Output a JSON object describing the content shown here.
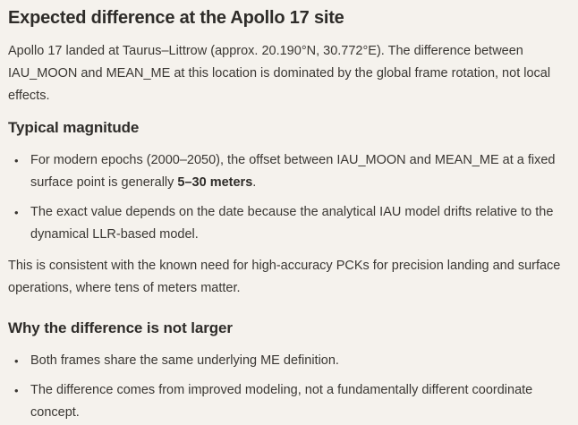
{
  "colors": {
    "background": "#f5f2ed",
    "body_text": "#3a3733",
    "heading_text": "#2e2c29"
  },
  "title": "Expected difference at the Apollo 17 site",
  "intro": "Apollo 17 landed at Taurus–Littrow (approx. 20.190°N, 30.772°E). The difference between IAU_MOON and MEAN_ME at this location is dominated by the global frame rotation, not local effects.",
  "typical_magnitude": {
    "heading": "Typical magnitude",
    "bullet1": {
      "before": "For modern epochs (2000–2050), the offset between IAU_MOON and MEAN_ME at a fixed surface point is generally ",
      "bold": "5–30 meters",
      "after": "."
    },
    "bullet2": "The exact value depends on the date because the analytical IAU model drifts relative to the dynamical LLR-based model.",
    "note": "This is consistent with the known need for high-accuracy PCKs for precision landing and surface operations, where tens of meters matter."
  },
  "why_not_larger": {
    "heading": "Why the difference is not larger",
    "bullet1": "Both frames share the same underlying ME definition.",
    "bullet2": "The difference comes from improved modeling, not a fundamentally different coordinate concept."
  }
}
